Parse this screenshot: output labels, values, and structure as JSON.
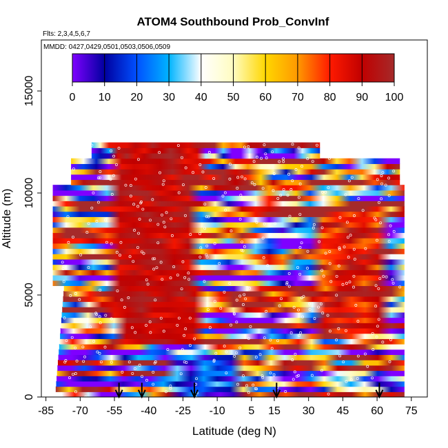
{
  "chart_data": {
    "type": "heatmap",
    "title": "ATOM4 Southbound Prob_ConvInf",
    "flights_note": "Flts: 2,3,4,5,6,7",
    "dates_note": "MMDD: 0427,0429,0501,0503,0506,0509",
    "xlabel": "Latitude (deg N)",
    "ylabel": "Altitude (m)",
    "xlim": [
      -87,
      82
    ],
    "ylim": [
      0,
      17500
    ],
    "xticks": [
      -85,
      -70,
      -55,
      -40,
      -25,
      -10,
      5,
      15,
      30,
      45,
      60,
      75
    ],
    "yticks": [
      0,
      5000,
      10000,
      15000
    ],
    "colorbar": {
      "ticks": [
        0,
        10,
        20,
        30,
        40,
        50,
        60,
        70,
        80,
        90,
        100
      ],
      "range": [
        0,
        100
      ],
      "colors": [
        "#7f00ff",
        "#00009f",
        "#0050ff",
        "#00b4ff",
        "#ffffff",
        "#fffcc0",
        "#ffd700",
        "#ff9900",
        "#ff1a00",
        "#c00000",
        "#a52a2a"
      ]
    },
    "arrows_latitude": [
      -53,
      -43,
      -20,
      16,
      61
    ],
    "grid": false,
    "legend": "colorbar top"
  }
}
